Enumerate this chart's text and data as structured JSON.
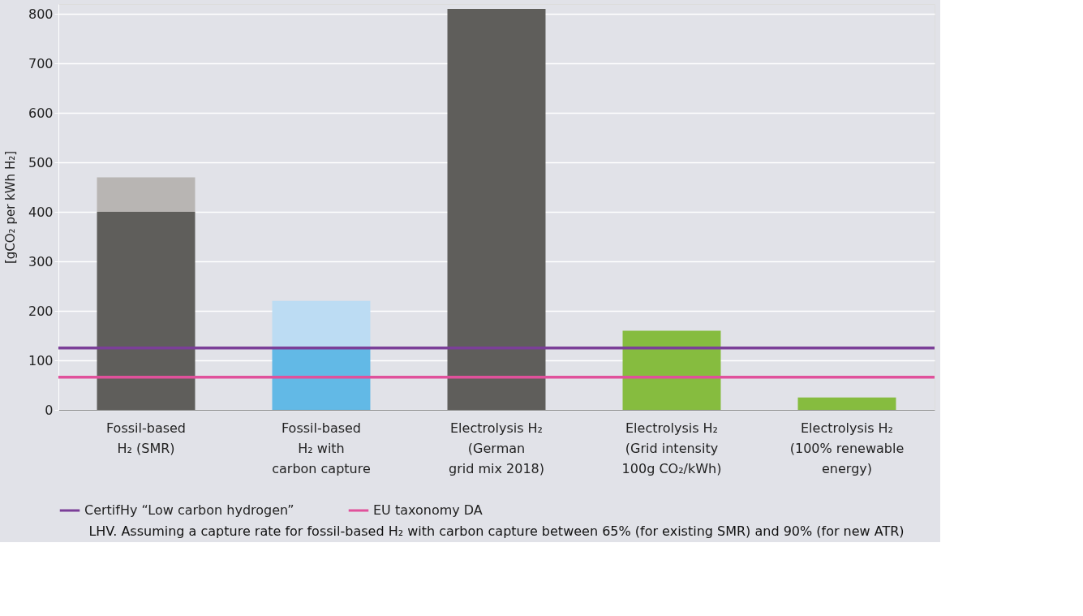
{
  "chart_data": {
    "type": "bar",
    "stacked": true,
    "ylabel": "[gCO₂ per kWh H₂]",
    "categories": [
      "Fossil-based\nH₂ (SMR)",
      "Fossil-based\nH₂ with\ncarbon capture",
      "Electrolysis H₂\n(German\ngrid mix 2018)",
      "Electrolysis H₂\n(Grid intensity\n100g CO₂/kWh)",
      "Electrolysis H₂\n(100% renewable\nenergy)"
    ],
    "series": [
      {
        "colors": [
          "#5f5e5b",
          "#62b9e6",
          "#5f5e5b",
          "#86bc3f",
          "#86bc3f"
        ],
        "values": [
          400,
          125,
          810,
          160,
          25
        ]
      },
      {
        "colors": [
          "#b8b5b3",
          "#bcdcf3",
          null,
          null,
          null
        ],
        "values": [
          70,
          95,
          null,
          null,
          null
        ]
      }
    ],
    "ylim": [
      0,
      820
    ],
    "yticks": [
      0,
      100,
      200,
      300,
      400,
      500,
      600,
      700,
      800
    ],
    "grid": "y",
    "legend": "bottom",
    "ref_lines": [
      {
        "axis": "y",
        "value": 125,
        "label": "CertifHy “Low carbon hydrogen”",
        "color": "#7b3f98"
      },
      {
        "axis": "y",
        "value": 66,
        "label": "EU taxonomy DA",
        "color": "#e0519b"
      }
    ],
    "annotations": [
      "LHV. Assuming a capture rate for fossil-based H₂ with carbon capture between 65% (for existing SMR) and 90% (for new ATR)"
    ]
  }
}
